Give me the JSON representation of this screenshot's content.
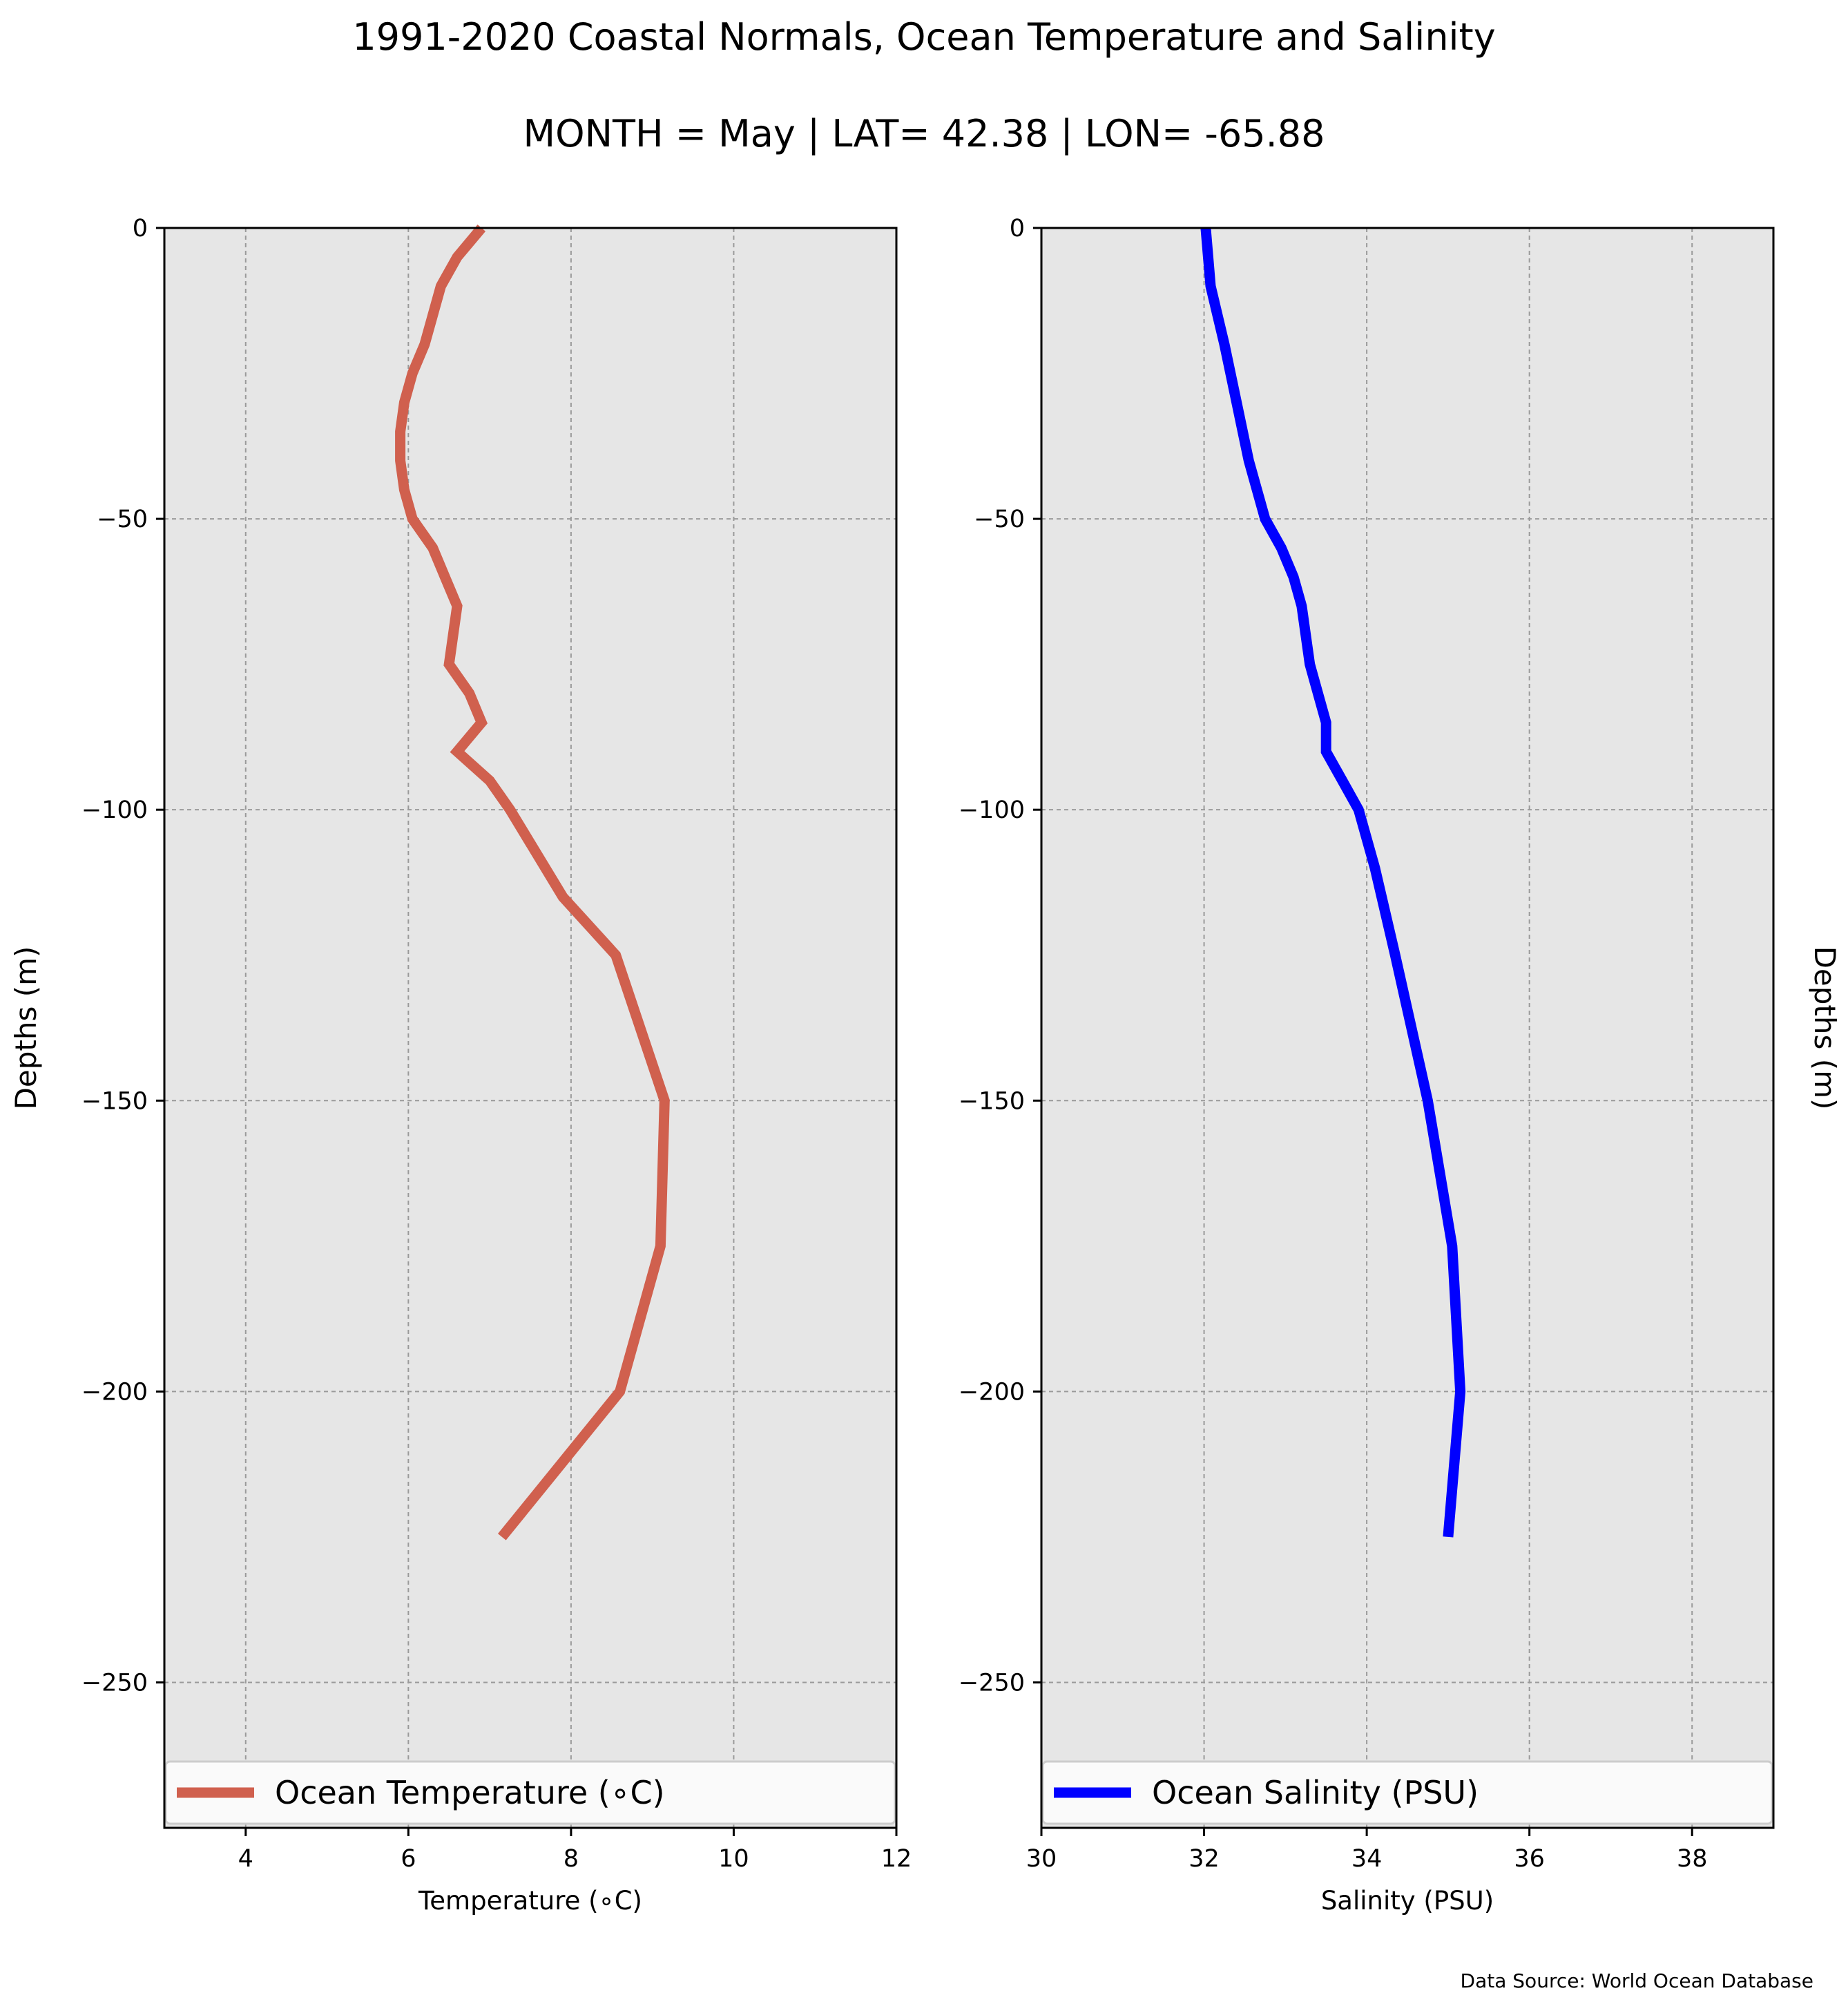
{
  "title": "1991-2020 Coastal Normals, Ocean Temperature and Salinity",
  "subtitle": "MONTH = May | LAT= 42.38 | LON= -65.88",
  "source": "Data Source: World Ocean Database",
  "chart_data": [
    {
      "type": "line",
      "xlabel": "Temperature (∘C)",
      "ylabel": "Depths (m)",
      "xlim": [
        3,
        12
      ],
      "ylim": [
        -275,
        0
      ],
      "xticks": [
        "4",
        "6",
        "8",
        "10",
        "12"
      ],
      "yticks": [
        "0",
        "−50",
        "−100",
        "−150",
        "−200",
        "−250"
      ],
      "grid": true,
      "legend_position": "lower center",
      "color": "#d0604e",
      "series": [
        {
          "name": "Ocean Temperature (∘C)",
          "points": [
            {
              "x": 6.9,
              "y": 0
            },
            {
              "x": 6.6,
              "y": -5
            },
            {
              "x": 6.4,
              "y": -10
            },
            {
              "x": 6.2,
              "y": -20
            },
            {
              "x": 6.05,
              "y": -25
            },
            {
              "x": 5.95,
              "y": -30
            },
            {
              "x": 5.9,
              "y": -35
            },
            {
              "x": 5.9,
              "y": -40
            },
            {
              "x": 5.95,
              "y": -45
            },
            {
              "x": 6.05,
              "y": -50
            },
            {
              "x": 6.3,
              "y": -55
            },
            {
              "x": 6.45,
              "y": -60
            },
            {
              "x": 6.6,
              "y": -65
            },
            {
              "x": 6.55,
              "y": -70
            },
            {
              "x": 6.5,
              "y": -75
            },
            {
              "x": 6.75,
              "y": -80
            },
            {
              "x": 6.9,
              "y": -85
            },
            {
              "x": 6.6,
              "y": -90
            },
            {
              "x": 7.0,
              "y": -95
            },
            {
              "x": 7.25,
              "y": -100
            },
            {
              "x": 7.9,
              "y": -115
            },
            {
              "x": 8.55,
              "y": -125
            },
            {
              "x": 9.15,
              "y": -150
            },
            {
              "x": 9.1,
              "y": -175
            },
            {
              "x": 8.6,
              "y": -200
            },
            {
              "x": 7.15,
              "y": -225
            }
          ]
        }
      ]
    },
    {
      "type": "line",
      "xlabel": "Salinity (PSU)",
      "ylabel": "Depths (m)",
      "xlim": [
        30,
        39
      ],
      "ylim": [
        -275,
        0
      ],
      "xticks": [
        "30",
        "32",
        "34",
        "36",
        "38"
      ],
      "yticks": [
        "0",
        "−50",
        "−100",
        "−150",
        "−200",
        "−250"
      ],
      "grid": true,
      "legend_position": "lower center",
      "color": "#0000ff",
      "series": [
        {
          "name": "Ocean Salinity (PSU)",
          "points": [
            {
              "x": 32.02,
              "y": 0
            },
            {
              "x": 32.08,
              "y": -10
            },
            {
              "x": 32.25,
              "y": -20
            },
            {
              "x": 32.4,
              "y": -30
            },
            {
              "x": 32.55,
              "y": -40
            },
            {
              "x": 32.75,
              "y": -50
            },
            {
              "x": 32.95,
              "y": -55
            },
            {
              "x": 33.1,
              "y": -60
            },
            {
              "x": 33.2,
              "y": -65
            },
            {
              "x": 33.3,
              "y": -75
            },
            {
              "x": 33.5,
              "y": -85
            },
            {
              "x": 33.5,
              "y": -90
            },
            {
              "x": 33.7,
              "y": -95
            },
            {
              "x": 33.9,
              "y": -100
            },
            {
              "x": 34.1,
              "y": -110
            },
            {
              "x": 34.35,
              "y": -125
            },
            {
              "x": 34.75,
              "y": -150
            },
            {
              "x": 35.05,
              "y": -175
            },
            {
              "x": 35.15,
              "y": -200
            },
            {
              "x": 35.0,
              "y": -225
            }
          ]
        }
      ]
    }
  ]
}
